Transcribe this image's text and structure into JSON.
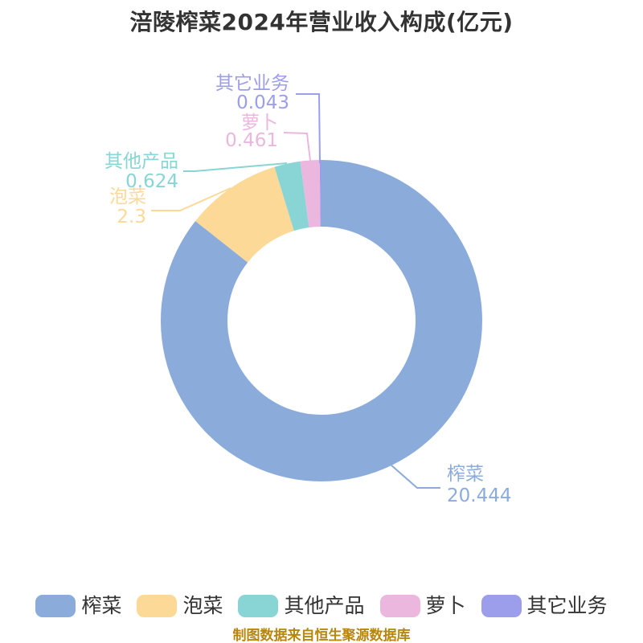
{
  "title": "涪陵榨菜2024年营业收入构成(亿元)",
  "footer": "制图数据来自恒生聚源数据库",
  "colors": {
    "background": "#ffffff",
    "title_text": "#333333",
    "legend_text": "#333333",
    "footer_text": "#B8860B"
  },
  "chart_data": {
    "type": "pie",
    "donut": true,
    "title": "涪陵榨菜2024年营业收入构成(亿元)",
    "unit": "亿元",
    "legend_position": "bottom",
    "slices": [
      {
        "name": "榨菜",
        "value": 20.444,
        "value_label": "20.444",
        "color": "#8BACDB"
      },
      {
        "name": "泡菜",
        "value": 2.3,
        "value_label": "2.3",
        "color": "#FDD998"
      },
      {
        "name": "其他产品",
        "value": 0.624,
        "value_label": "0.624",
        "color": "#89D4D4"
      },
      {
        "name": "萝卜",
        "value": 0.461,
        "value_label": "0.461",
        "color": "#EBB7DE"
      },
      {
        "name": "其它业务",
        "value": 0.043,
        "value_label": "0.043",
        "color": "#9C9EEC"
      }
    ],
    "legend": [
      "榨菜",
      "泡菜",
      "其他产品",
      "萝卜",
      "其它业务"
    ]
  }
}
